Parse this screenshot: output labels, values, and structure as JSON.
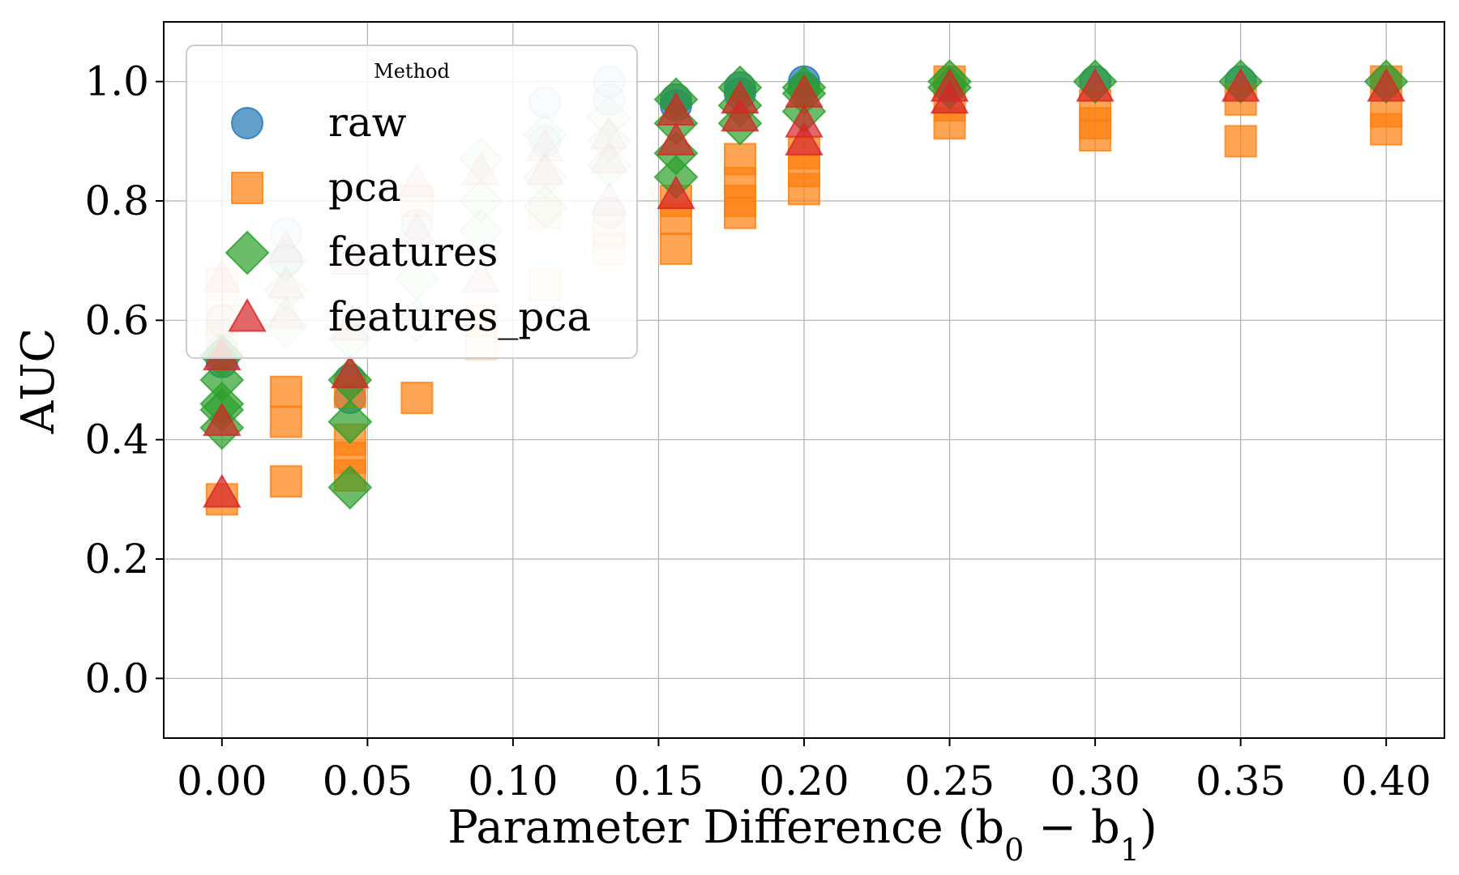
{
  "chart_data": {
    "type": "scatter",
    "title": "",
    "xlabel": "Parameter Difference (b",
    "xlabel_sub0": "0",
    "xlabel_minus": " − b",
    "xlabel_sub1": "1",
    "xlabel_close": ")",
    "ylabel": "AUC",
    "xlim": [
      -0.02,
      0.42
    ],
    "ylim": [
      -0.1,
      1.1
    ],
    "xticks": [
      "0.00",
      "0.05",
      "0.10",
      "0.15",
      "0.20",
      "0.25",
      "0.30",
      "0.35",
      "0.40"
    ],
    "yticks": [
      "0.0",
      "0.2",
      "0.4",
      "0.6",
      "0.8",
      "1.0"
    ],
    "grid": true,
    "legend": {
      "title": "Method",
      "placement": "top-left",
      "entries": [
        "raw",
        "pca",
        "features",
        "features_pca"
      ]
    },
    "series": [
      {
        "name": "raw",
        "marker": "circle",
        "color": "#1f77b4",
        "points": [
          {
            "x": 0.0,
            "y": 0.6,
            "faded": true
          },
          {
            "x": 0.0,
            "y": 0.55,
            "faded": true
          },
          {
            "x": 0.0,
            "y": 0.53,
            "faded": false
          },
          {
            "x": 0.022,
            "y": 0.745,
            "faded": true
          },
          {
            "x": 0.022,
            "y": 0.7,
            "faded": true
          },
          {
            "x": 0.044,
            "y": 0.5,
            "faded": false
          },
          {
            "x": 0.044,
            "y": 0.47,
            "faded": false
          },
          {
            "x": 0.067,
            "y": 0.76,
            "faded": true
          },
          {
            "x": 0.111,
            "y": 0.965,
            "faded": true
          },
          {
            "x": 0.111,
            "y": 0.9,
            "faded": true
          },
          {
            "x": 0.133,
            "y": 1.0,
            "faded": true
          },
          {
            "x": 0.133,
            "y": 0.97,
            "faded": true
          },
          {
            "x": 0.133,
            "y": 0.78,
            "faded": true
          },
          {
            "x": 0.156,
            "y": 0.97,
            "faded": false
          },
          {
            "x": 0.156,
            "y": 0.96,
            "faded": false
          },
          {
            "x": 0.178,
            "y": 0.99,
            "faded": false
          },
          {
            "x": 0.178,
            "y": 0.98,
            "faded": false
          },
          {
            "x": 0.2,
            "y": 1.0,
            "faded": false
          },
          {
            "x": 0.2,
            "y": 0.99,
            "faded": false
          },
          {
            "x": 0.25,
            "y": 1.0,
            "faded": false
          },
          {
            "x": 0.3,
            "y": 1.0,
            "faded": false
          },
          {
            "x": 0.35,
            "y": 1.0,
            "faded": false
          },
          {
            "x": 0.4,
            "y": 1.0,
            "faded": false
          }
        ]
      },
      {
        "name": "pca",
        "marker": "square",
        "color": "#ff7f0e",
        "points": [
          {
            "x": 0.0,
            "y": 0.66,
            "faded": true
          },
          {
            "x": 0.0,
            "y": 0.6,
            "faded": true
          },
          {
            "x": 0.0,
            "y": 0.57,
            "faded": true
          },
          {
            "x": 0.0,
            "y": 0.3,
            "faded": false
          },
          {
            "x": 0.022,
            "y": 0.48,
            "faded": false
          },
          {
            "x": 0.022,
            "y": 0.43,
            "faded": false
          },
          {
            "x": 0.022,
            "y": 0.33,
            "faded": false
          },
          {
            "x": 0.044,
            "y": 0.48,
            "faded": false
          },
          {
            "x": 0.044,
            "y": 0.4,
            "faded": false
          },
          {
            "x": 0.044,
            "y": 0.37,
            "faded": false
          },
          {
            "x": 0.044,
            "y": 0.34,
            "faded": false
          },
          {
            "x": 0.067,
            "y": 0.8,
            "faded": true
          },
          {
            "x": 0.067,
            "y": 0.47,
            "faded": false
          },
          {
            "x": 0.089,
            "y": 0.6,
            "faded": true
          },
          {
            "x": 0.089,
            "y": 0.56,
            "faded": true
          },
          {
            "x": 0.111,
            "y": 0.78,
            "faded": true
          },
          {
            "x": 0.111,
            "y": 0.66,
            "faded": true
          },
          {
            "x": 0.133,
            "y": 0.75,
            "faded": true
          },
          {
            "x": 0.133,
            "y": 0.72,
            "faded": true
          },
          {
            "x": 0.156,
            "y": 0.8,
            "faded": false
          },
          {
            "x": 0.156,
            "y": 0.77,
            "faded": false
          },
          {
            "x": 0.156,
            "y": 0.72,
            "faded": false
          },
          {
            "x": 0.178,
            "y": 0.87,
            "faded": false
          },
          {
            "x": 0.178,
            "y": 0.83,
            "faded": false
          },
          {
            "x": 0.178,
            "y": 0.8,
            "faded": false
          },
          {
            "x": 0.178,
            "y": 0.78,
            "faded": false
          },
          {
            "x": 0.2,
            "y": 0.88,
            "faded": false
          },
          {
            "x": 0.2,
            "y": 0.85,
            "faded": false
          },
          {
            "x": 0.2,
            "y": 0.82,
            "faded": false
          },
          {
            "x": 0.25,
            "y": 1.0,
            "faded": false
          },
          {
            "x": 0.25,
            "y": 0.96,
            "faded": false
          },
          {
            "x": 0.25,
            "y": 0.93,
            "faded": false
          },
          {
            "x": 0.3,
            "y": 0.96,
            "faded": false
          },
          {
            "x": 0.3,
            "y": 0.93,
            "faded": false
          },
          {
            "x": 0.3,
            "y": 0.91,
            "faded": false
          },
          {
            "x": 0.35,
            "y": 0.97,
            "faded": false
          },
          {
            "x": 0.35,
            "y": 0.9,
            "faded": false
          },
          {
            "x": 0.4,
            "y": 1.0,
            "faded": false
          },
          {
            "x": 0.4,
            "y": 0.95,
            "faded": false
          },
          {
            "x": 0.4,
            "y": 0.92,
            "faded": false
          }
        ]
      },
      {
        "name": "features",
        "marker": "diamond",
        "color": "#2ca02c",
        "points": [
          {
            "x": 0.0,
            "y": 0.54,
            "faded": false
          },
          {
            "x": 0.0,
            "y": 0.5,
            "faded": false
          },
          {
            "x": 0.0,
            "y": 0.46,
            "faded": false
          },
          {
            "x": 0.0,
            "y": 0.45,
            "faded": false
          },
          {
            "x": 0.0,
            "y": 0.42,
            "faded": false
          },
          {
            "x": 0.022,
            "y": 0.7,
            "faded": true
          },
          {
            "x": 0.022,
            "y": 0.65,
            "faded": true
          },
          {
            "x": 0.022,
            "y": 0.59,
            "faded": true
          },
          {
            "x": 0.044,
            "y": 0.57,
            "faded": true
          },
          {
            "x": 0.044,
            "y": 0.5,
            "faded": false
          },
          {
            "x": 0.044,
            "y": 0.43,
            "faded": false
          },
          {
            "x": 0.044,
            "y": 0.32,
            "faded": false
          },
          {
            "x": 0.067,
            "y": 0.67,
            "faded": true
          },
          {
            "x": 0.067,
            "y": 0.6,
            "faded": true
          },
          {
            "x": 0.089,
            "y": 0.87,
            "faded": true
          },
          {
            "x": 0.089,
            "y": 0.8,
            "faded": true
          },
          {
            "x": 0.089,
            "y": 0.75,
            "faded": true
          },
          {
            "x": 0.111,
            "y": 0.91,
            "faded": true
          },
          {
            "x": 0.111,
            "y": 0.84,
            "faded": true
          },
          {
            "x": 0.111,
            "y": 0.79,
            "faded": true
          },
          {
            "x": 0.133,
            "y": 0.94,
            "faded": true
          },
          {
            "x": 0.133,
            "y": 0.9,
            "faded": true
          },
          {
            "x": 0.133,
            "y": 0.86,
            "faded": true
          },
          {
            "x": 0.156,
            "y": 0.97,
            "faded": false
          },
          {
            "x": 0.156,
            "y": 0.93,
            "faded": false
          },
          {
            "x": 0.156,
            "y": 0.88,
            "faded": false
          },
          {
            "x": 0.156,
            "y": 0.84,
            "faded": false
          },
          {
            "x": 0.178,
            "y": 0.99,
            "faded": false
          },
          {
            "x": 0.178,
            "y": 0.96,
            "faded": false
          },
          {
            "x": 0.178,
            "y": 0.93,
            "faded": false
          },
          {
            "x": 0.2,
            "y": 0.99,
            "faded": false
          },
          {
            "x": 0.2,
            "y": 0.98,
            "faded": false
          },
          {
            "x": 0.2,
            "y": 0.95,
            "faded": false
          },
          {
            "x": 0.25,
            "y": 1.0,
            "faded": false
          },
          {
            "x": 0.25,
            "y": 0.99,
            "faded": false
          },
          {
            "x": 0.3,
            "y": 1.0,
            "faded": false
          },
          {
            "x": 0.35,
            "y": 1.0,
            "faded": false
          },
          {
            "x": 0.4,
            "y": 1.0,
            "faded": false
          }
        ]
      },
      {
        "name": "features_pca",
        "marker": "triangle",
        "color": "#d62728",
        "points": [
          {
            "x": 0.0,
            "y": 0.67,
            "faded": true
          },
          {
            "x": 0.0,
            "y": 0.54,
            "faded": false
          },
          {
            "x": 0.0,
            "y": 0.43,
            "faded": false
          },
          {
            "x": 0.0,
            "y": 0.31,
            "faded": false
          },
          {
            "x": 0.022,
            "y": 0.72,
            "faded": true
          },
          {
            "x": 0.022,
            "y": 0.66,
            "faded": true
          },
          {
            "x": 0.022,
            "y": 0.61,
            "faded": true
          },
          {
            "x": 0.044,
            "y": 0.7,
            "faded": true
          },
          {
            "x": 0.044,
            "y": 0.59,
            "faded": true
          },
          {
            "x": 0.044,
            "y": 0.51,
            "faded": false
          },
          {
            "x": 0.067,
            "y": 0.83,
            "faded": true
          },
          {
            "x": 0.067,
            "y": 0.75,
            "faded": true
          },
          {
            "x": 0.089,
            "y": 0.85,
            "faded": true
          },
          {
            "x": 0.089,
            "y": 0.67,
            "faded": true
          },
          {
            "x": 0.111,
            "y": 0.89,
            "faded": true
          },
          {
            "x": 0.111,
            "y": 0.85,
            "faded": true
          },
          {
            "x": 0.133,
            "y": 0.91,
            "faded": true
          },
          {
            "x": 0.133,
            "y": 0.87,
            "faded": true
          },
          {
            "x": 0.133,
            "y": 0.8,
            "faded": true
          },
          {
            "x": 0.156,
            "y": 0.95,
            "faded": false
          },
          {
            "x": 0.156,
            "y": 0.9,
            "faded": false
          },
          {
            "x": 0.156,
            "y": 0.81,
            "faded": false
          },
          {
            "x": 0.178,
            "y": 0.97,
            "faded": false
          },
          {
            "x": 0.178,
            "y": 0.94,
            "faded": false
          },
          {
            "x": 0.2,
            "y": 0.98,
            "faded": false
          },
          {
            "x": 0.2,
            "y": 0.93,
            "faded": false
          },
          {
            "x": 0.2,
            "y": 0.9,
            "faded": false
          },
          {
            "x": 0.25,
            "y": 0.99,
            "faded": false
          },
          {
            "x": 0.25,
            "y": 0.97,
            "faded": false
          },
          {
            "x": 0.3,
            "y": 0.99,
            "faded": false
          },
          {
            "x": 0.35,
            "y": 0.99,
            "faded": false
          },
          {
            "x": 0.4,
            "y": 0.99,
            "faded": false
          }
        ]
      }
    ]
  }
}
